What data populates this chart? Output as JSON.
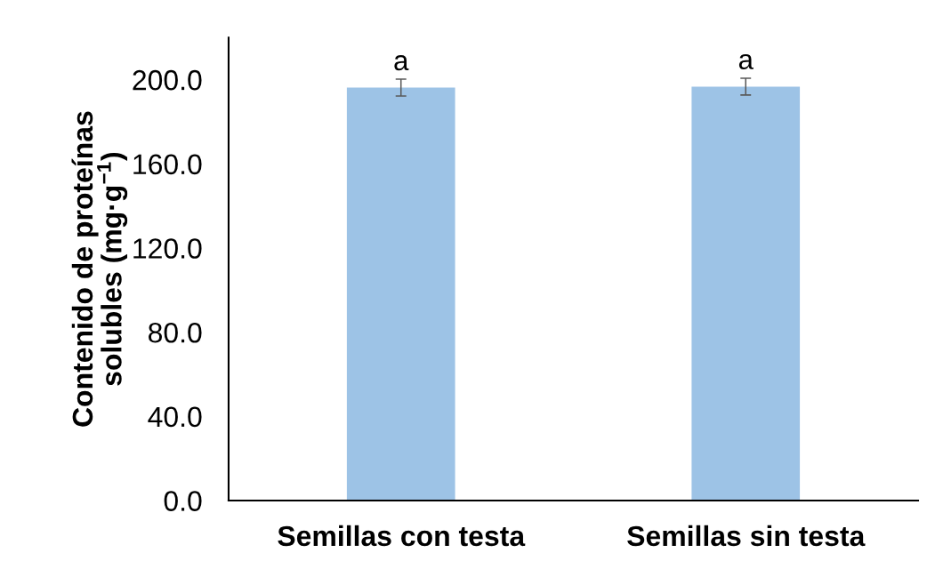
{
  "chart_data": {
    "type": "bar",
    "categories": [
      "Semillas con testa",
      "Semillas sin testa"
    ],
    "values": [
      196.2,
      196.7
    ],
    "errors": [
      4,
      4
    ],
    "color": "#9dc3e6",
    "ylabel": "Contenido de proteínas\nsolubles (mg·g$^{−1}$)",
    "ylim": [
      0,
      220
    ],
    "yticks": [
      {
        "value": 0,
        "label": "0.0"
      },
      {
        "value": 40,
        "label": "40.0"
      },
      {
        "value": 80,
        "label": "80.0"
      },
      {
        "value": 120,
        "label": "120.0"
      },
      {
        "value": 160,
        "label": "160.0"
      },
      {
        "value": 200,
        "label": "200.0"
      }
    ],
    "annotations": [
      {
        "text": "a",
        "x": "Semillas con testa",
        "y": 196.2
      },
      {
        "text": "a",
        "x": "Semillas sin testa",
        "y": 196.7
      }
    ],
    "grid": false,
    "legend": false
  }
}
